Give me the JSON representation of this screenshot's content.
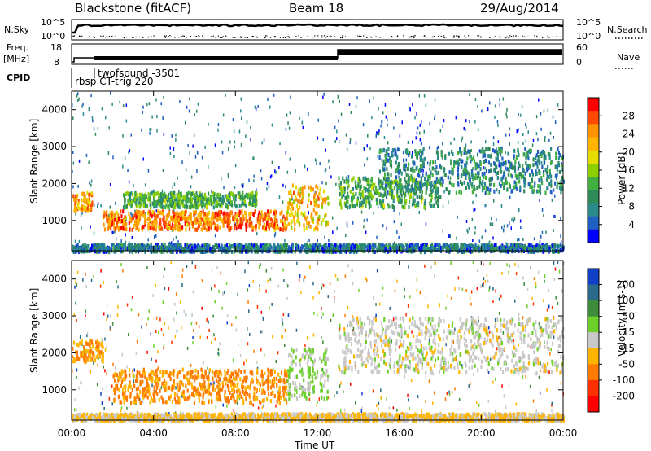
{
  "header": {
    "station": "Blackstone (fitACF)",
    "beam": "Beam 18",
    "date": "29/Aug/2014"
  },
  "strips": {
    "nsky_label": "N.Sky",
    "nsky_ticks": [
      "10^5",
      "10^0"
    ],
    "nsky_right_ticks": [
      "10^5",
      "10^0"
    ],
    "nsearch_label": "N.Search",
    "freq_label": "Freq.",
    "freq_unit": "[MHz]",
    "freq_ticks": [
      "18",
      "8"
    ],
    "nave_ticks": [
      "60",
      "0"
    ],
    "nave_label": "Nave",
    "cpid_label": "CPID",
    "cpid_entries": [
      "twofsound -3501",
      "rbsp CT-trig 220"
    ]
  },
  "panels": {
    "ylabel": "Slant Range [km]",
    "yticks": [
      "4000",
      "3000",
      "2000",
      "1000"
    ],
    "xlabel": "Time UT",
    "xticks": [
      "00:00",
      "04:00",
      "08:00",
      "12:00",
      "16:00",
      "20:00",
      "00:00"
    ]
  },
  "power_scale": {
    "label": "Power [dB]",
    "ticks": [
      "28",
      "24",
      "20",
      "16",
      "12",
      "8",
      "4"
    ],
    "colors": [
      "#ff0000",
      "#ff4800",
      "#ff9400",
      "#ffb400",
      "#e6dc00",
      "#8ecf00",
      "#42b040",
      "#2e8b57",
      "#2a8a8a",
      "#2060c0",
      "#0000ff"
    ]
  },
  "velocity_scale": {
    "label": "Velocity [m s-1]",
    "ticks": [
      "200",
      "100",
      "50",
      "15",
      "-15",
      "-50",
      "-100",
      "-200"
    ],
    "colors": [
      "#1040c8",
      "#2a6a8a",
      "#3c8c3c",
      "#6ccf2a",
      "#c8c8c8",
      "#ffb400",
      "#ff7a00",
      "#ff3000",
      "#ff0000"
    ]
  },
  "chart_data": [
    {
      "type": "heatmap",
      "title": "Power",
      "xlabel": "Time UT",
      "ylabel": "Slant Range [km]",
      "xlim": [
        "00:00",
        "24:00"
      ],
      "ylim": [
        180,
        4500
      ],
      "colorbar": {
        "label": "Power [dB]",
        "range": [
          0,
          32
        ]
      },
      "echo_regions": [
        {
          "t_start": 0.0,
          "t_end": 1.0,
          "range_km": [
            1300,
            1800
          ],
          "power_db": 24
        },
        {
          "t_start": 1.5,
          "t_end": 10.5,
          "range_km": [
            800,
            1300
          ],
          "power_db": 26
        },
        {
          "t_start": 2.5,
          "t_end": 9.0,
          "range_km": [
            1400,
            1800
          ],
          "power_db": 12
        },
        {
          "t_start": 10.5,
          "t_end": 12.5,
          "range_km": [
            800,
            2000
          ],
          "power_db": 22
        },
        {
          "t_start": 13.0,
          "t_end": 18.0,
          "range_km": [
            1400,
            2200
          ],
          "power_db": 12
        },
        {
          "t_start": 15.0,
          "t_end": 24.0,
          "range_km": [
            1800,
            3000
          ],
          "power_db": 8
        },
        {
          "t_start": 0.0,
          "t_end": 24.0,
          "range_km": [
            200,
            400
          ],
          "power_db": 6
        }
      ]
    },
    {
      "type": "heatmap",
      "title": "Velocity",
      "xlabel": "Time UT",
      "ylabel": "Slant Range [km]",
      "xlim": [
        "00:00",
        "24:00"
      ],
      "ylim": [
        180,
        4500
      ],
      "colorbar": {
        "label": "Velocity [m s-1]",
        "range": [
          -200,
          200
        ]
      },
      "echo_regions": [
        {
          "t_start": 0.0,
          "t_end": 1.5,
          "range_km": [
            1800,
            2400
          ],
          "velocity": -70
        },
        {
          "t_start": 2.0,
          "t_end": 10.5,
          "range_km": [
            700,
            1600
          ],
          "velocity": -80
        },
        {
          "t_start": 10.5,
          "t_end": 12.5,
          "range_km": [
            800,
            2200
          ],
          "velocity": 30
        },
        {
          "t_start": 13.0,
          "t_end": 24.0,
          "range_km": [
            1500,
            3000
          ],
          "velocity": 0
        },
        {
          "t_start": 0.0,
          "t_end": 24.0,
          "range_km": [
            200,
            400
          ],
          "velocity": -30
        }
      ]
    }
  ]
}
